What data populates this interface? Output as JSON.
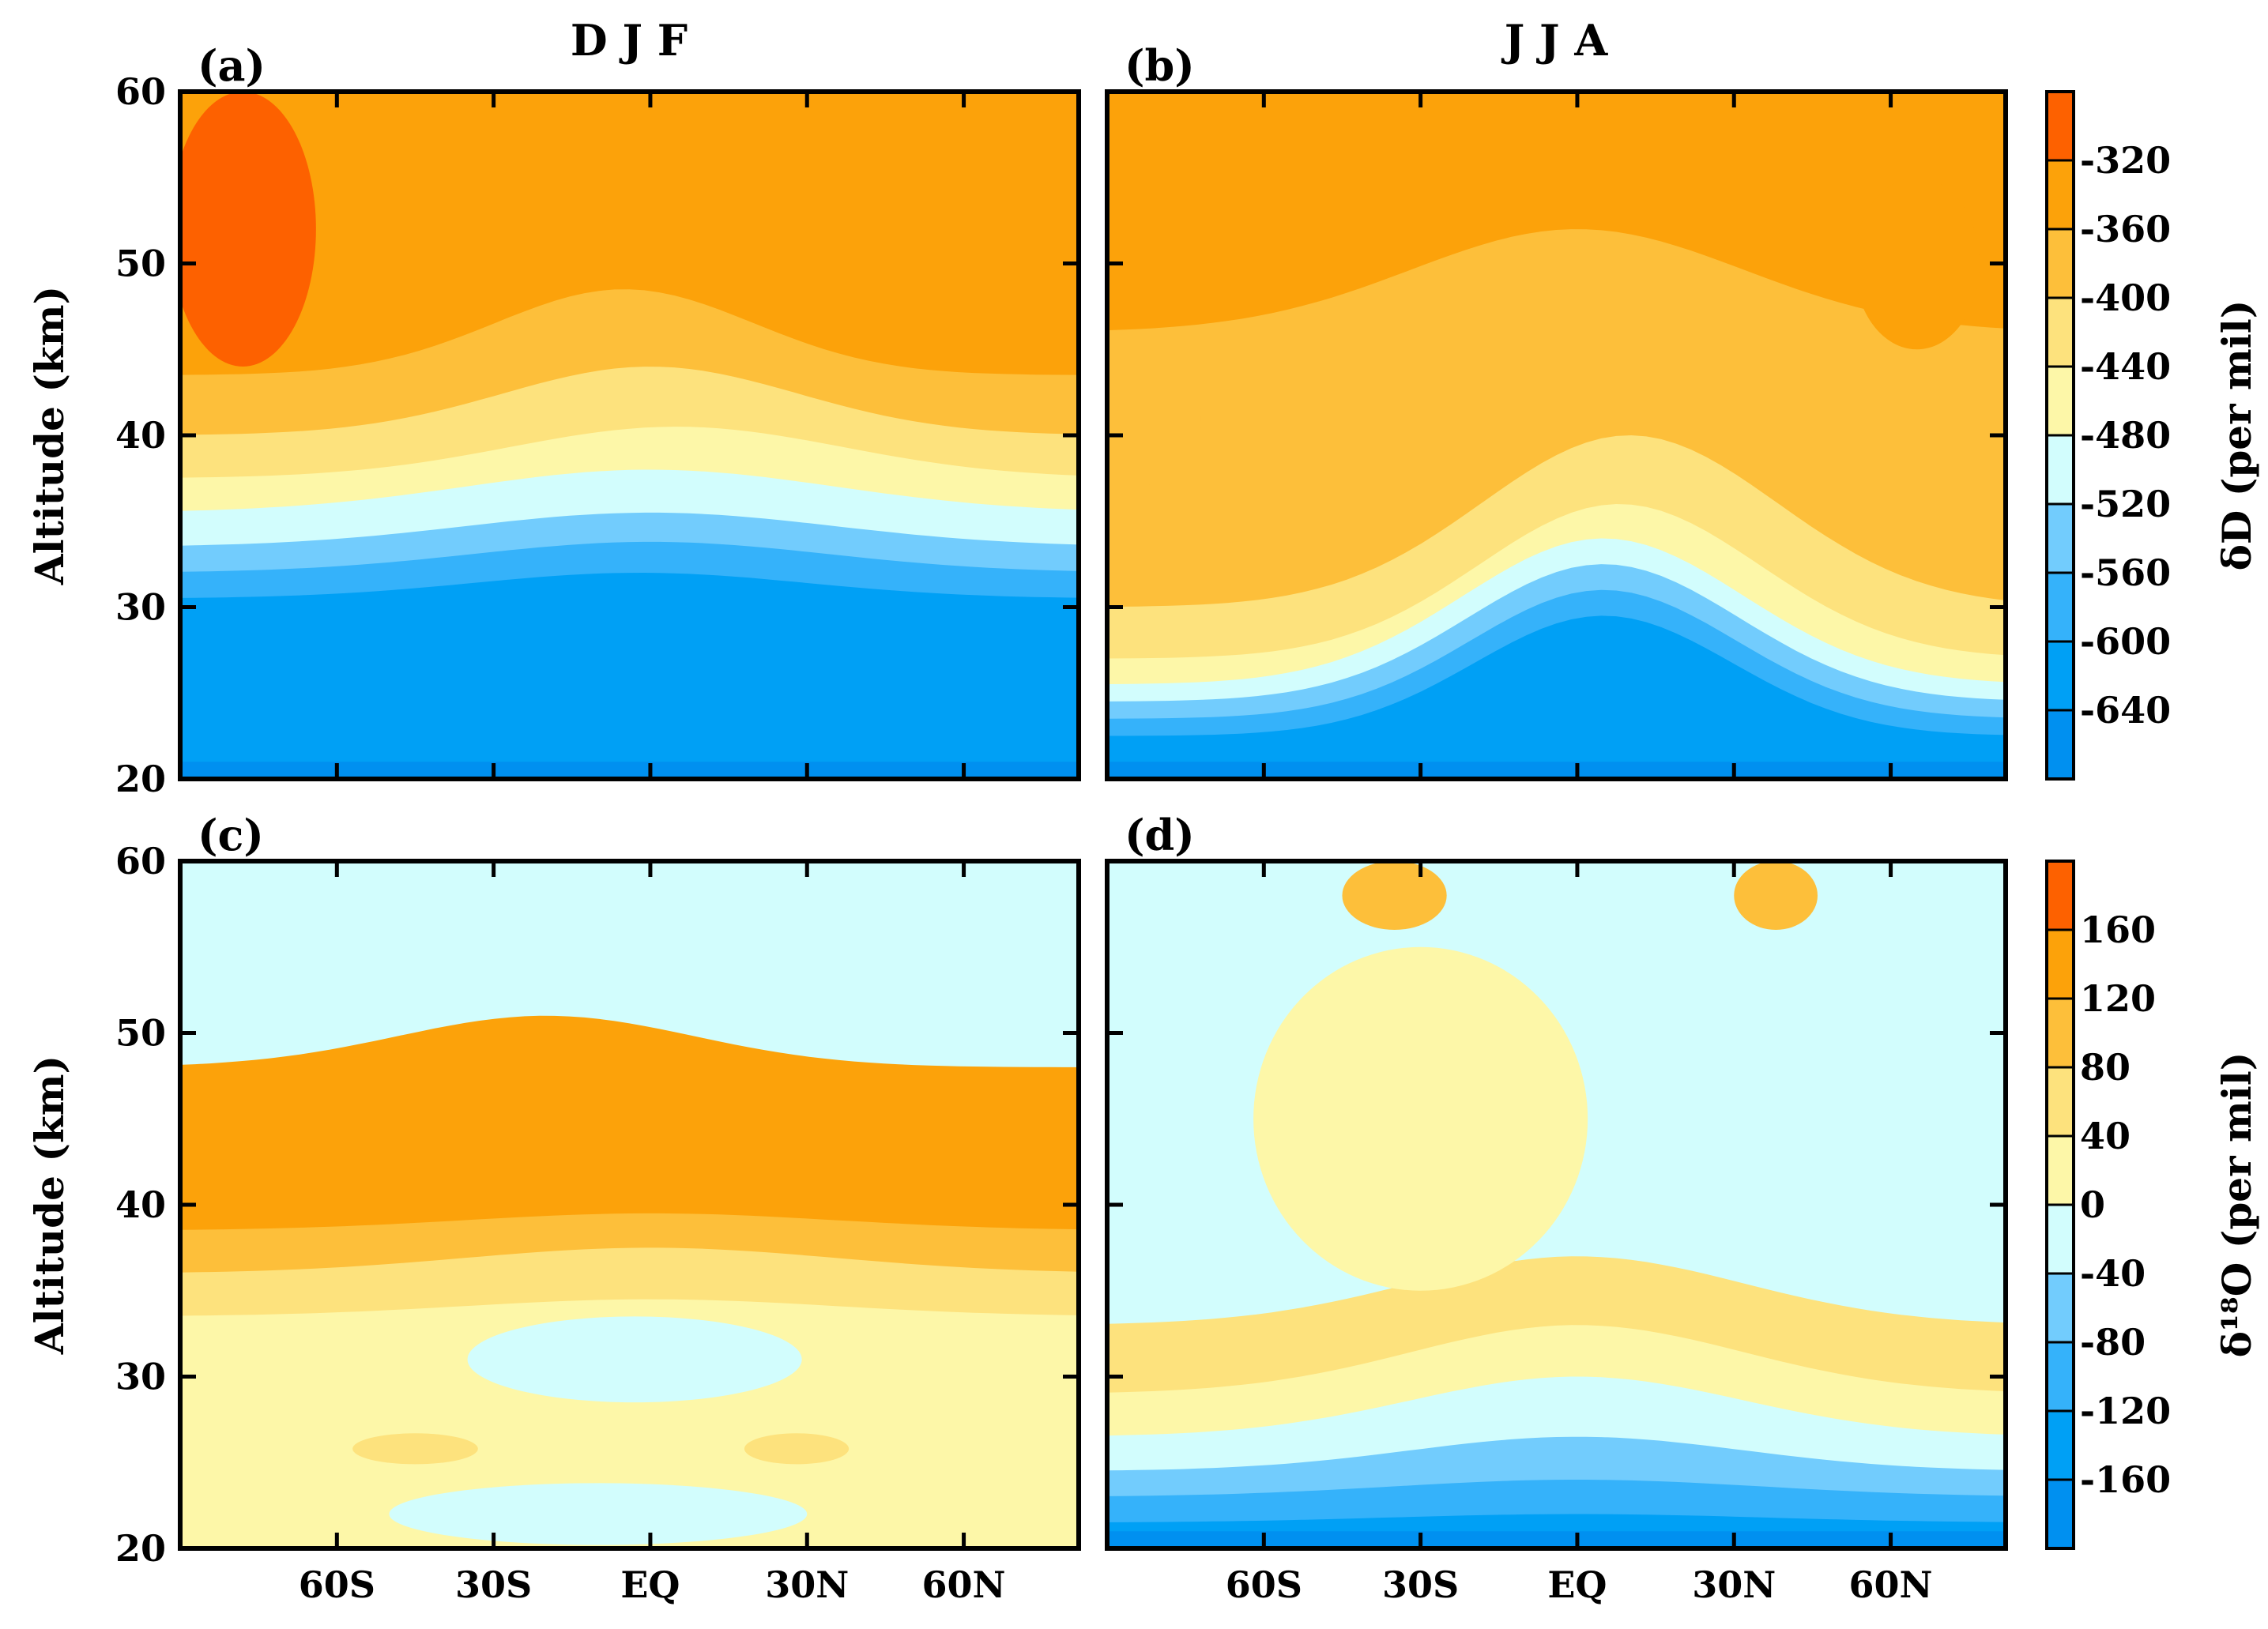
{
  "chart_data": [
    {
      "type": "heatmap",
      "panel_label": "(a)",
      "title": "D J F",
      "xlabel": "",
      "ylabel": "Altitude (km)",
      "x_ticks": [
        "60S",
        "30S",
        "EQ",
        "30N",
        "60N"
      ],
      "x_tick_values": [
        -60,
        -30,
        0,
        30,
        60
      ],
      "xlim": [
        -90,
        82
      ],
      "y_ticks": [
        20,
        30,
        40,
        50,
        60
      ],
      "ylim": [
        20,
        60
      ],
      "colorbar_label": "δD (per mil)",
      "levels": [
        -640,
        -600,
        -560,
        -520,
        -480,
        -440,
        -400,
        -360,
        -320
      ],
      "color_scheme": "deltaD",
      "layers": [
        {
          "y": 30.5,
          "amp": 1.5,
          "center": -2,
          "width": 45,
          "level_id": 1
        },
        {
          "y": 32.0,
          "amp": 1.8,
          "center": 0,
          "width": 48,
          "level_id": 2
        },
        {
          "y": 33.5,
          "amp": 2.0,
          "center": 0,
          "width": 50,
          "level_id": 3
        },
        {
          "y": 35.5,
          "amp": 2.5,
          "center": 0,
          "width": 50,
          "level_id": 4
        },
        {
          "y": 37.5,
          "amp": 3.0,
          "center": 5,
          "width": 45,
          "level_id": 5
        },
        {
          "y": 40.0,
          "amp": 4.0,
          "center": 0,
          "width": 40,
          "level_id": 6
        },
        {
          "y": 43.5,
          "amp": 5.0,
          "center": -5,
          "width": 35,
          "level_id": 7
        }
      ],
      "patches": [
        {
          "x": -78,
          "y": 52,
          "rx": 14,
          "ry": 8,
          "level_id": 9
        }
      ]
    },
    {
      "type": "heatmap",
      "panel_label": "(b)",
      "title": "J J A",
      "xlabel": "",
      "ylabel": "",
      "x_ticks": [
        "60S",
        "30S",
        "EQ",
        "30N",
        "60N"
      ],
      "x_tick_values": [
        -60,
        -30,
        0,
        30,
        60
      ],
      "xlim": [
        -90,
        82
      ],
      "y_ticks": [
        20,
        30,
        40,
        50,
        60
      ],
      "ylim": [
        20,
        60
      ],
      "colorbar_label": "δD (per mil)",
      "levels": [
        -640,
        -600,
        -560,
        -520,
        -480,
        -440,
        -400,
        -360,
        -320
      ],
      "color_scheme": "deltaD",
      "layers": [
        {
          "y": 22.5,
          "amp": 7.0,
          "center": 5,
          "width": 35,
          "level_id": 1
        },
        {
          "y": 23.5,
          "amp": 7.5,
          "center": 5,
          "width": 36,
          "level_id": 2
        },
        {
          "y": 24.5,
          "amp": 8.0,
          "center": 5,
          "width": 37,
          "level_id": 3
        },
        {
          "y": 25.5,
          "amp": 8.5,
          "center": 5,
          "width": 38,
          "level_id": 4
        },
        {
          "y": 27.0,
          "amp": 9.0,
          "center": 8,
          "width": 38,
          "level_id": 5
        },
        {
          "y": 30.0,
          "amp": 10.0,
          "center": 10,
          "width": 40,
          "level_id": 6
        },
        {
          "y": 46.0,
          "amp": 6.0,
          "center": 0,
          "width": 45,
          "level_id": 7
        }
      ],
      "patches": [
        {
          "x": -80,
          "y": 41,
          "rx": 8,
          "ry": 4,
          "level_id": 7
        },
        {
          "x": 65,
          "y": 50,
          "rx": 12,
          "ry": 5,
          "level_id": 8
        }
      ]
    },
    {
      "type": "heatmap",
      "panel_label": "(c)",
      "title": "",
      "xlabel": "",
      "ylabel": "Altitude (km)",
      "x_ticks": [
        "60S",
        "30S",
        "EQ",
        "30N",
        "60N"
      ],
      "x_tick_values": [
        -60,
        -30,
        0,
        30,
        60
      ],
      "xlim": [
        -90,
        82
      ],
      "y_ticks": [
        20,
        30,
        40,
        50,
        60
      ],
      "ylim": [
        20,
        60
      ],
      "colorbar_label": "δ¹⁸O (per mil)",
      "levels": [
        -160,
        -120,
        -80,
        -40,
        0,
        40,
        80,
        120,
        160
      ],
      "color_scheme": "delta18O",
      "layers": [
        {
          "y": 33.5,
          "amp": 1.0,
          "center": 0,
          "width": 50,
          "level_id": 5
        },
        {
          "y": 36.0,
          "amp": 1.5,
          "center": 0,
          "width": 50,
          "level_id": 6
        },
        {
          "y": 38.5,
          "amp": 1.0,
          "center": 0,
          "width": 50,
          "level_id": 7
        },
        {
          "y": 48.0,
          "amp": 3.0,
          "center": -20,
          "width": 40,
          "level_id": 8
        }
      ],
      "patches": [
        {
          "x": -3,
          "y": 31.0,
          "rx": 32,
          "ry": 2.5,
          "level_id": 4
        },
        {
          "x": -10,
          "y": 22.0,
          "rx": 40,
          "ry": 1.8,
          "level_id": 4
        },
        {
          "x": -45,
          "y": 25.8,
          "rx": 12,
          "ry": 0.9,
          "level_id": 6
        },
        {
          "x": 28,
          "y": 25.8,
          "rx": 10,
          "ry": 0.9,
          "level_id": 6
        }
      ]
    },
    {
      "type": "heatmap",
      "panel_label": "(d)",
      "title": "",
      "xlabel": "",
      "ylabel": "",
      "x_ticks": [
        "60S",
        "30S",
        "EQ",
        "30N",
        "60N"
      ],
      "x_tick_values": [
        -60,
        -30,
        0,
        30,
        60
      ],
      "xlim": [
        -90,
        82
      ],
      "y_ticks": [
        20,
        30,
        40,
        50,
        60
      ],
      "ylim": [
        20,
        60
      ],
      "colorbar_label": "δ¹⁸O (per mil)",
      "levels": [
        -160,
        -120,
        -80,
        -40,
        0,
        40,
        80,
        120,
        160
      ],
      "color_scheme": "delta18O",
      "layers": [
        {
          "y": 21.5,
          "amp": 0.5,
          "center": 0,
          "width": 50,
          "level_id": 1
        },
        {
          "y": 23.0,
          "amp": 1.0,
          "center": 0,
          "width": 50,
          "level_id": 2
        },
        {
          "y": 24.5,
          "amp": 2.0,
          "center": 0,
          "width": 45,
          "level_id": 3
        },
        {
          "y": 26.5,
          "amp": 3.5,
          "center": 0,
          "width": 45,
          "level_id": 4
        },
        {
          "y": 29.0,
          "amp": 4.0,
          "center": 0,
          "width": 45,
          "level_id": 5
        },
        {
          "y": 33.0,
          "amp": 4.0,
          "center": 0,
          "width": 45,
          "level_id": 6
        }
      ],
      "patches": [
        {
          "x": -30,
          "y": 45,
          "rx": 32,
          "ry": 10,
          "level_id": 5
        },
        {
          "x": -35,
          "y": 58,
          "rx": 10,
          "ry": 2,
          "level_id": 7
        },
        {
          "x": 38,
          "y": 58,
          "rx": 8,
          "ry": 2,
          "level_id": 7
        }
      ]
    }
  ],
  "colorbars": [
    {
      "label": "δD (per mil)",
      "ticks": [
        "-320",
        "-360",
        "-400",
        "-440",
        "-480",
        "-520",
        "-560",
        "-600",
        "-640"
      ]
    },
    {
      "label": "δ¹⁸O (per mil)",
      "ticks": [
        "160",
        "120",
        "80",
        "40",
        "0",
        "-40",
        "-80",
        "-120",
        "-160"
      ]
    }
  ],
  "colors": [
    "#0090f0",
    "#00a0f5",
    "#35b2fa",
    "#72ccfd",
    "#d2fdfd",
    "#fdf7a8",
    "#fde27d",
    "#fdbf3a",
    "#fca20a",
    "#fd6100"
  ]
}
